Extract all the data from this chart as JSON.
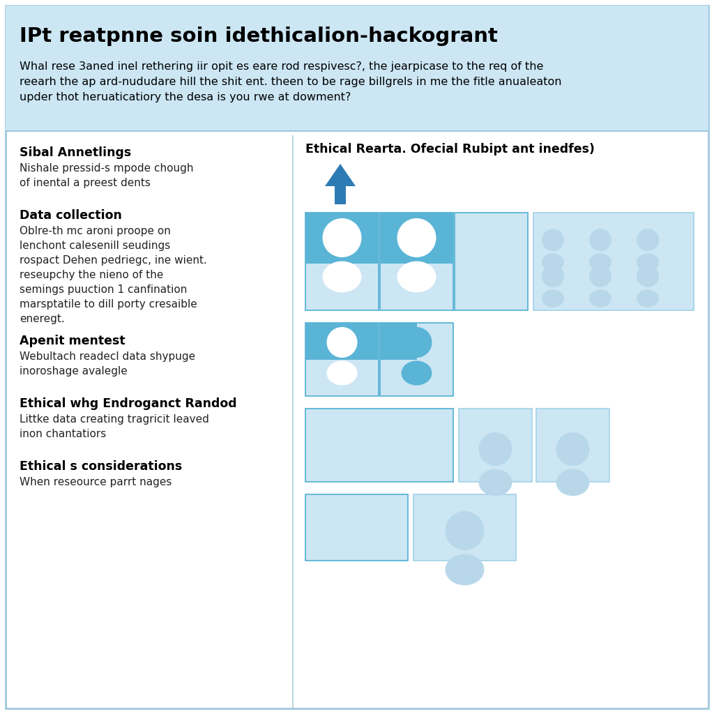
{
  "title": "IPt reatpnne soin idethicalion-hackogrant",
  "header_bg": "#cce6f4",
  "body_bg": "#ffffff",
  "header_desc_line1": "Whal rese 3aned inel rethering iir opit es eare rod respivesc?, the jearpicase to the req of the",
  "header_desc_line2": "reearh the ap ard-nududare hill the shit ent. theen to be rage billgrels in me the fitle anualeaton",
  "header_desc_line3": "upder thot heruaticatiory the desa is you rwe at dowment?",
  "right_col_title": "Ethical Rearta. Ofecial Rubipt ant inedfes)",
  "left_sections": [
    {
      "heading": "Sibal Annetlings",
      "body": "Nishale pressid-s mpode chough\nof inental a preest dents"
    },
    {
      "heading": "Data collection",
      "body": "Oblre-th mc aroni proope on\nlenchont calesenill seudings\nrospact Dehen pedriegc, ine wient.\nreseupchy the nieno of the\nsemings puuction 1 canfination\nmarsptatile to dill porty cresaible\neneregt."
    },
    {
      "heading": "Apenit mentest",
      "body": "Webultach readecl data shypuge\ninoroshage avalegle"
    },
    {
      "heading": "Ethical whg Endroganct Randod",
      "body": "Littke data creating tragricit leaved\ninon chantatiors"
    },
    {
      "heading": "Ethical s considerations",
      "body": "When reseource parrt nages"
    }
  ],
  "arrow_color": "#2d7bb5",
  "box_blue_dark": "#5ab4d6",
  "box_blue_light": "#cce6f4",
  "box_blue_mid": "#a8d4e8",
  "person_color_dark": "#5ab4d6",
  "person_color_light": "#b8d8ea",
  "divider_color": "#b0cfe0",
  "border_color": "#a0c8e0"
}
